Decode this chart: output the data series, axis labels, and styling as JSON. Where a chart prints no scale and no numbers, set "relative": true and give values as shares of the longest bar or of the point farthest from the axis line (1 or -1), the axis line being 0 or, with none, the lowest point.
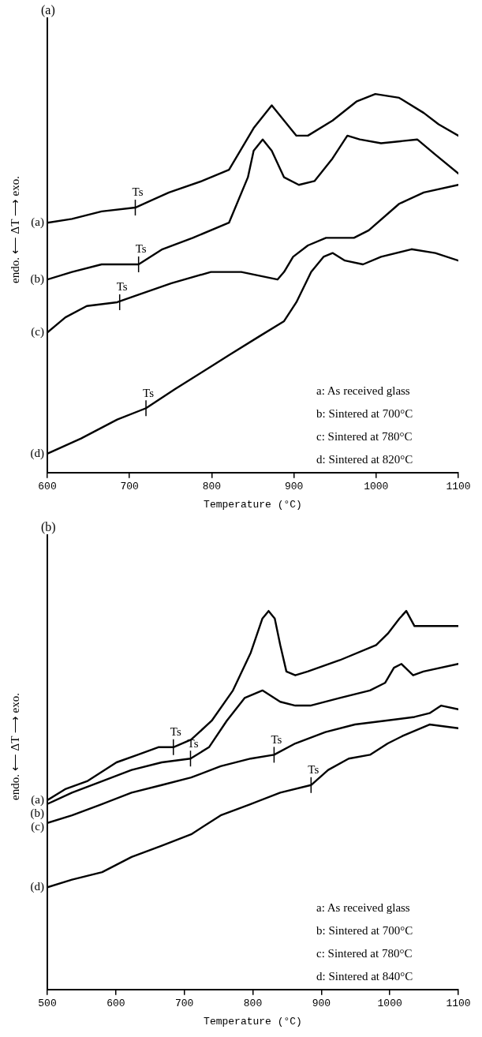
{
  "chart_data": [
    {
      "type": "line",
      "title": "(a)",
      "xlabel": "Temperature (°C)",
      "ylabel": "endo. ⟵ ΔT ⟶ exo.",
      "relative": true,
      "grid": false,
      "legend": false,
      "marker": "none",
      "line_style": "solid",
      "xlim": [
        600,
        1100
      ],
      "xticks": [
        600,
        700,
        800,
        900,
        1000,
        1100
      ],
      "series": [
        {
          "name": "(a)",
          "color": "#000000",
          "x": [
            600,
            630,
            666,
            707,
            748,
            788,
            821,
            851,
            873,
            888,
            903,
            917,
            947,
            976,
            999,
            1028,
            1058,
            1076,
            1100
          ],
          "values": [
            0.66,
            0.67,
            0.69,
            0.7,
            0.74,
            0.77,
            0.8,
            0.91,
            0.97,
            0.93,
            0.89,
            0.89,
            0.93,
            0.98,
            1.0,
            0.99,
            0.95,
            0.92,
            0.89
          ]
        },
        {
          "name": "(b)",
          "color": "#000000",
          "x": [
            600,
            630,
            666,
            711,
            740,
            777,
            821,
            844,
            851,
            862,
            873,
            888,
            906,
            925,
            947,
            965,
            980,
            1006,
            1050,
            1072,
            1100
          ],
          "values": [
            0.51,
            0.53,
            0.55,
            0.55,
            0.59,
            0.62,
            0.66,
            0.78,
            0.85,
            0.88,
            0.85,
            0.78,
            0.76,
            0.77,
            0.83,
            0.89,
            0.88,
            0.87,
            0.88,
            0.84,
            0.79
          ]
        },
        {
          "name": "(c)",
          "color": "#000000",
          "x": [
            600,
            622,
            648,
            685,
            711,
            751,
            799,
            836,
            880,
            888,
            899,
            917,
            939,
            973,
            991,
            1028,
            1058,
            1100
          ],
          "values": [
            0.37,
            0.41,
            0.44,
            0.45,
            0.47,
            0.5,
            0.53,
            0.53,
            0.51,
            0.53,
            0.57,
            0.6,
            0.62,
            0.62,
            0.64,
            0.71,
            0.74,
            0.76
          ]
        },
        {
          "name": "(d)",
          "color": "#000000",
          "x": [
            600,
            641,
            685,
            720,
            755,
            799,
            821,
            858,
            888,
            903,
            921,
            936,
            947,
            962,
            984,
            1006,
            1043,
            1072,
            1100
          ],
          "values": [
            0.05,
            0.09,
            0.14,
            0.17,
            0.22,
            0.28,
            0.31,
            0.36,
            0.4,
            0.45,
            0.53,
            0.57,
            0.58,
            0.56,
            0.55,
            0.57,
            0.59,
            0.58,
            0.56
          ]
        }
      ],
      "annotations": [
        {
          "text": "Ts",
          "x": 707,
          "y": 0.7
        },
        {
          "text": "Ts",
          "x": 711,
          "y": 0.55
        },
        {
          "text": "Ts",
          "x": 688,
          "y": 0.45
        },
        {
          "text": "Ts",
          "x": 720,
          "y": 0.17
        },
        "a: As received glass",
        "b: Sintered at 700°C",
        "c: Sintered at 780°C",
        "d: Sintered at 820°C"
      ]
    },
    {
      "type": "line",
      "title": "(b)",
      "xlabel": "Temperature (°C)",
      "ylabel": "endo. ⟵ ΔT ⟶ exo.",
      "relative": true,
      "grid": false,
      "legend": false,
      "marker": "none",
      "line_style": "solid",
      "xlim": [
        500,
        1100
      ],
      "xticks": [
        500,
        600,
        700,
        800,
        900,
        1000,
        1100
      ],
      "series": [
        {
          "name": "(a)",
          "color": "#000000",
          "x": [
            500,
            527,
            558,
            601,
            632,
            662,
            684,
            710,
            740,
            771,
            797,
            814,
            823,
            832,
            840,
            849,
            862,
            880,
            927,
            980,
            997,
            1014,
            1024,
            1036,
            1049,
            1100
          ],
          "values": [
            0.5,
            0.53,
            0.55,
            0.6,
            0.62,
            0.64,
            0.64,
            0.66,
            0.71,
            0.79,
            0.89,
            0.98,
            1.0,
            0.98,
            0.91,
            0.84,
            0.83,
            0.84,
            0.87,
            0.91,
            0.94,
            0.98,
            1.0,
            0.96,
            0.96,
            0.96
          ]
        },
        {
          "name": "(b)",
          "color": "#000000",
          "x": [
            500,
            536,
            580,
            623,
            667,
            709,
            736,
            762,
            788,
            814,
            840,
            862,
            884,
            927,
            971,
            993,
            1006,
            1017,
            1034,
            1049,
            1100
          ],
          "values": [
            0.49,
            0.52,
            0.55,
            0.58,
            0.6,
            0.61,
            0.64,
            0.71,
            0.77,
            0.79,
            0.76,
            0.75,
            0.75,
            0.77,
            0.79,
            0.81,
            0.85,
            0.86,
            0.83,
            0.84,
            0.86
          ]
        },
        {
          "name": "(c)",
          "color": "#000000",
          "x": [
            500,
            536,
            580,
            623,
            667,
            710,
            753,
            797,
            831,
            862,
            906,
            949,
            993,
            1036,
            1058,
            1075,
            1100
          ],
          "values": [
            0.44,
            0.46,
            0.49,
            0.52,
            0.54,
            0.56,
            0.59,
            0.61,
            0.62,
            0.65,
            0.68,
            0.7,
            0.71,
            0.72,
            0.73,
            0.75,
            0.74
          ]
        },
        {
          "name": "(d)",
          "color": "#000000",
          "x": [
            500,
            536,
            580,
            623,
            667,
            710,
            753,
            797,
            840,
            885,
            910,
            940,
            971,
            997,
            1019,
            1058,
            1100
          ],
          "values": [
            0.27,
            0.29,
            0.31,
            0.35,
            0.38,
            0.41,
            0.46,
            0.49,
            0.52,
            0.54,
            0.58,
            0.61,
            0.62,
            0.65,
            0.67,
            0.7,
            0.69
          ]
        }
      ],
      "annotations": [
        {
          "text": "Ts",
          "x": 684,
          "y": 0.64
        },
        {
          "text": "Ts",
          "x": 709,
          "y": 0.61
        },
        {
          "text": "Ts",
          "x": 831,
          "y": 0.62
        },
        {
          "text": "Ts",
          "x": 885,
          "y": 0.54
        },
        "a: As received glass",
        "b: Sintered at 700°C",
        "c: Sintered at 780°C",
        "d: Sintered at 840°C"
      ]
    }
  ]
}
